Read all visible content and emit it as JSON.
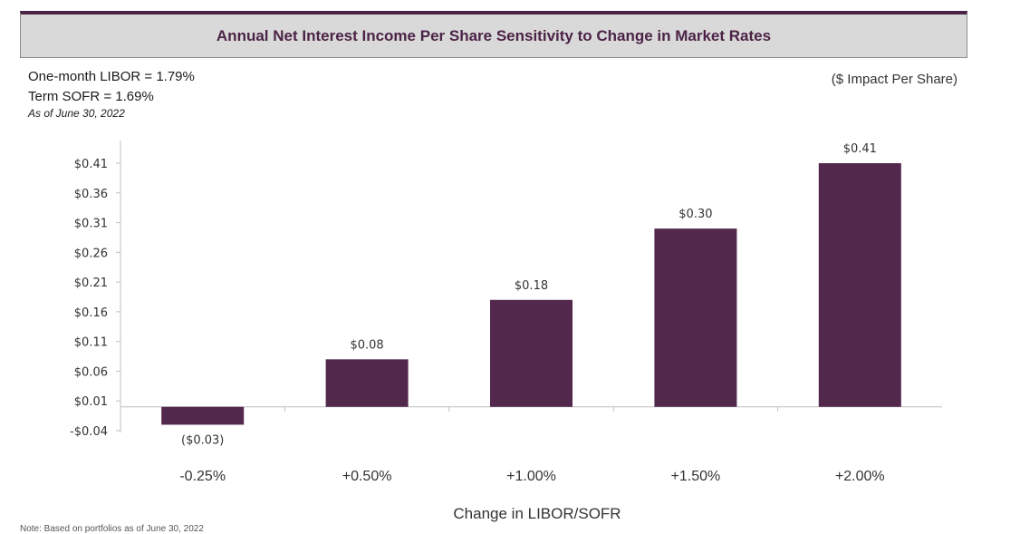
{
  "header": {
    "title": "Annual Net Interest Income Per Share Sensitivity to Change in Market Rates",
    "rate_line_1": "One-month LIBOR = 1.79%",
    "rate_line_2": "Term SOFR = 1.69%",
    "as_of": "As of June 30, 2022",
    "unit_note": "($ Impact Per Share)"
  },
  "footer": {
    "note": "Note: Based on portfolios as of June 30, 2022"
  },
  "colors": {
    "bar": "#52284c",
    "title_border": "#4b2346"
  },
  "chart_data": {
    "type": "bar",
    "title": "Annual Net Interest Income Per Share Sensitivity to Change in Market Rates",
    "xlabel": "Change in LIBOR/SOFR",
    "ylabel": "",
    "categories": [
      "-0.25%",
      "+0.50%",
      "+1.00%",
      "+1.50%",
      "+2.00%"
    ],
    "values": [
      -0.03,
      0.08,
      0.18,
      0.3,
      0.41
    ],
    "data_labels": [
      "($0.03)",
      "$0.08",
      "$0.18",
      "$0.30",
      "$0.41"
    ],
    "yticks": [
      -0.04,
      0.01,
      0.06,
      0.11,
      0.16,
      0.21,
      0.26,
      0.31,
      0.36,
      0.41
    ],
    "ytick_labels": [
      "-$0.04",
      "$0.01",
      "$0.06",
      "$0.11",
      "$0.16",
      "$0.21",
      "$0.26",
      "$0.31",
      "$0.36",
      "$0.41"
    ],
    "ylim": [
      -0.04,
      0.41
    ],
    "grid": false,
    "legend": "none"
  }
}
